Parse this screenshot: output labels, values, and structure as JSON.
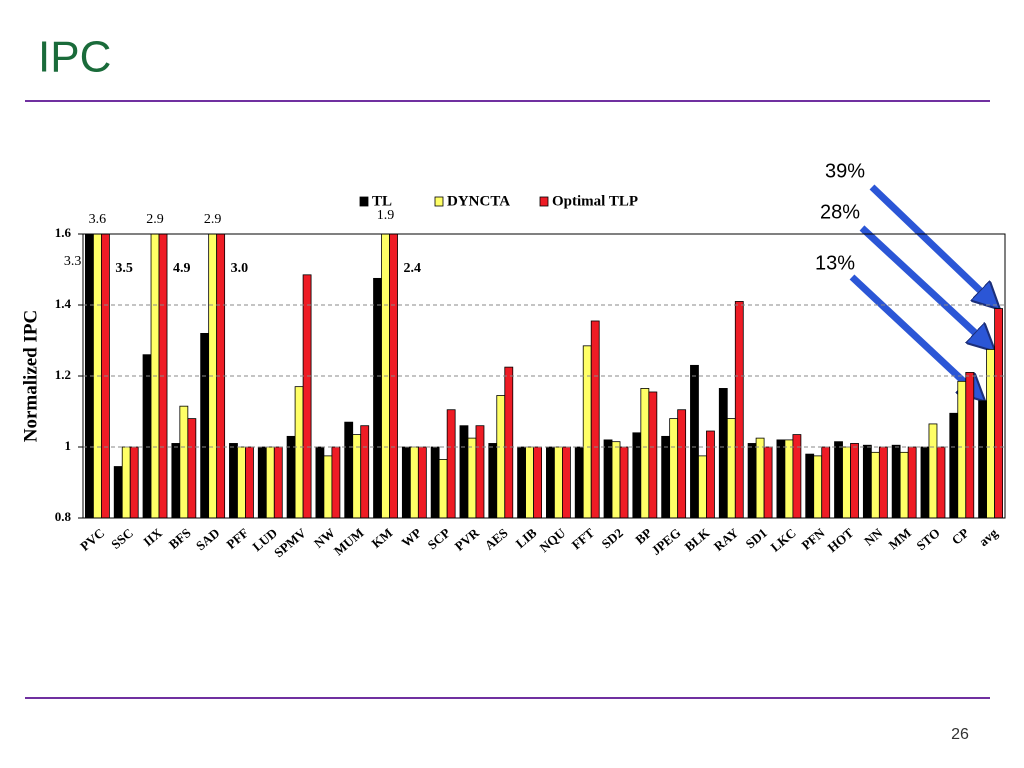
{
  "slide_title": "IPC",
  "page_number": "26",
  "chart_data": {
    "type": "bar",
    "y_label": "Normalized IPC",
    "categories": [
      "PVC",
      "SSC",
      "IIX",
      "BFS",
      "SAD",
      "PFF",
      "LUD",
      "SPMV",
      "NW",
      "MUM",
      "KM",
      "WP",
      "SCP",
      "PVR",
      "AES",
      "LIB",
      "NQU",
      "FFT",
      "SD2",
      "BP",
      "JPEG",
      "BLK",
      "RAY",
      "SD1",
      "LKC",
      "PFN",
      "HOT",
      "NN",
      "MM",
      "STO",
      "CP",
      "avg"
    ],
    "series": [
      {
        "name": "TL",
        "color": "#000000",
        "values": [
          3.3,
          0.945,
          1.26,
          1.01,
          1.32,
          1.01,
          1.0,
          1.03,
          1.0,
          1.07,
          1.475,
          1.0,
          1.0,
          1.06,
          1.01,
          1.0,
          1.0,
          1.0,
          1.02,
          1.04,
          1.03,
          1.23,
          1.165,
          1.01,
          1.02,
          0.98,
          1.015,
          1.005,
          1.005,
          1.0,
          1.095,
          1.13
        ],
        "value_labels": [
          "3.3",
          null,
          null,
          null,
          null,
          null,
          null,
          null,
          null,
          null,
          null,
          null,
          null,
          null,
          null,
          null,
          null,
          null,
          null,
          null,
          null,
          null,
          null,
          null,
          null,
          null,
          null,
          null,
          null,
          null,
          null,
          null
        ]
      },
      {
        "name": "DYNCTA",
        "color": "#ffff66",
        "values": [
          3.6,
          1.0,
          2.9,
          1.115,
          2.9,
          1.0,
          1.0,
          1.17,
          0.975,
          1.035,
          1.9,
          1.0,
          0.965,
          1.025,
          1.145,
          1.0,
          1.0,
          1.285,
          1.015,
          1.165,
          1.08,
          0.975,
          1.08,
          1.025,
          1.02,
          0.975,
          1.0,
          0.985,
          0.985,
          1.065,
          1.185,
          1.275
        ],
        "value_labels": [
          "3.6",
          null,
          "2.9",
          null,
          "2.9",
          null,
          null,
          null,
          null,
          null,
          "1.9",
          null,
          null,
          null,
          null,
          null,
          null,
          null,
          null,
          null,
          null,
          null,
          null,
          null,
          null,
          null,
          null,
          null,
          null,
          null,
          null,
          null
        ]
      },
      {
        "name": "Optimal TLP",
        "color": "#ee1c25",
        "values": [
          3.5,
          1.0,
          4.9,
          1.08,
          3.0,
          1.0,
          1.0,
          1.485,
          1.0,
          1.06,
          2.4,
          1.0,
          1.105,
          1.06,
          1.225,
          1.0,
          1.0,
          1.355,
          1.0,
          1.155,
          1.105,
          1.045,
          1.41,
          1.0,
          1.035,
          1.0,
          1.01,
          1.0,
          1.0,
          1.0,
          1.21,
          1.39
        ],
        "value_labels": [
          "3.5",
          null,
          "4.9",
          null,
          "3.0",
          null,
          null,
          null,
          null,
          null,
          "2.4",
          null,
          null,
          null,
          null,
          null,
          null,
          null,
          null,
          null,
          null,
          null,
          null,
          null,
          null,
          null,
          null,
          null,
          null,
          null,
          null,
          null
        ]
      }
    ],
    "ylim": [
      0.8,
      1.6
    ],
    "yticks": [
      0.8,
      1,
      1.2,
      1.4,
      1.6
    ],
    "grid": true,
    "legend": "top",
    "annotations": [
      "39%",
      "28%",
      "13%"
    ]
  }
}
